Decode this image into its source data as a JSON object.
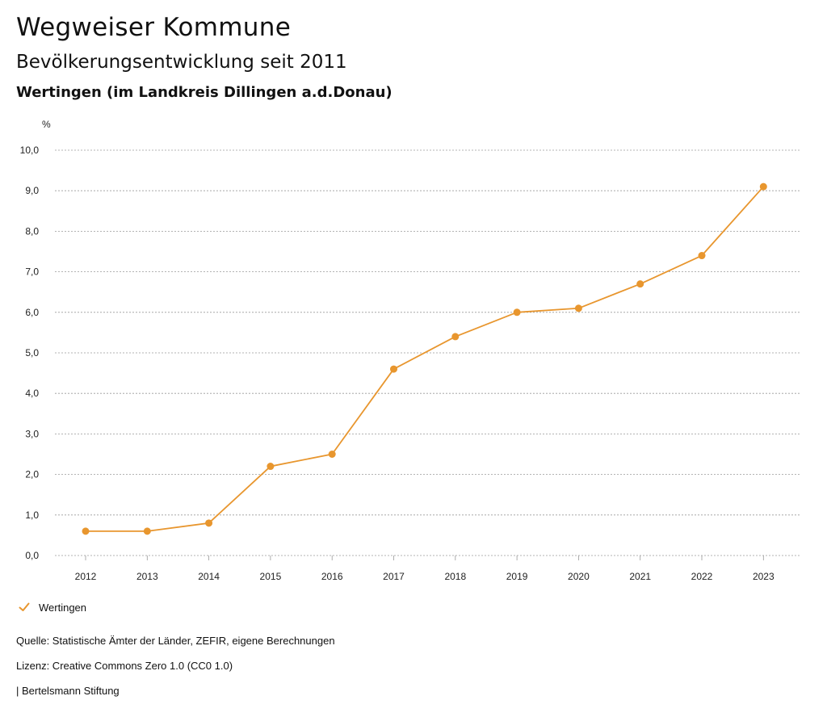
{
  "header": {
    "title": "Wegweiser Kommune",
    "subtitle": "Bevölkerungsentwicklung seit 2011",
    "region": "Wertingen (im Landkreis Dillingen a.d.Donau)"
  },
  "chart_data": {
    "type": "line",
    "title": "Bevölkerungsentwicklung seit 2011",
    "ylabel": "%",
    "xlabel": "",
    "categories": [
      "2012",
      "2013",
      "2014",
      "2015",
      "2016",
      "2017",
      "2018",
      "2019",
      "2020",
      "2021",
      "2022",
      "2023"
    ],
    "series": [
      {
        "name": "Wertingen",
        "color": "#E8962E",
        "values": [
          0.6,
          0.6,
          0.8,
          2.2,
          2.5,
          4.6,
          5.4,
          6.0,
          6.1,
          6.7,
          7.4,
          9.1
        ]
      }
    ],
    "ylim": [
      0,
      10
    ],
    "yticks": [
      "0,0",
      "1,0",
      "2,0",
      "3,0",
      "4,0",
      "5,0",
      "6,0",
      "7,0",
      "8,0",
      "9,0",
      "10,0"
    ],
    "grid": true,
    "legend_position": "bottom-left"
  },
  "legend": {
    "label": "Wertingen",
    "icon": "check-mark-icon"
  },
  "footer": {
    "source": "Quelle: Statistische Ämter der Länder, ZEFIR, eigene Berechnungen",
    "license": "Lizenz: Creative Commons Zero 1.0 (CC0 1.0)",
    "publisher": "| Bertelsmann Stiftung"
  }
}
